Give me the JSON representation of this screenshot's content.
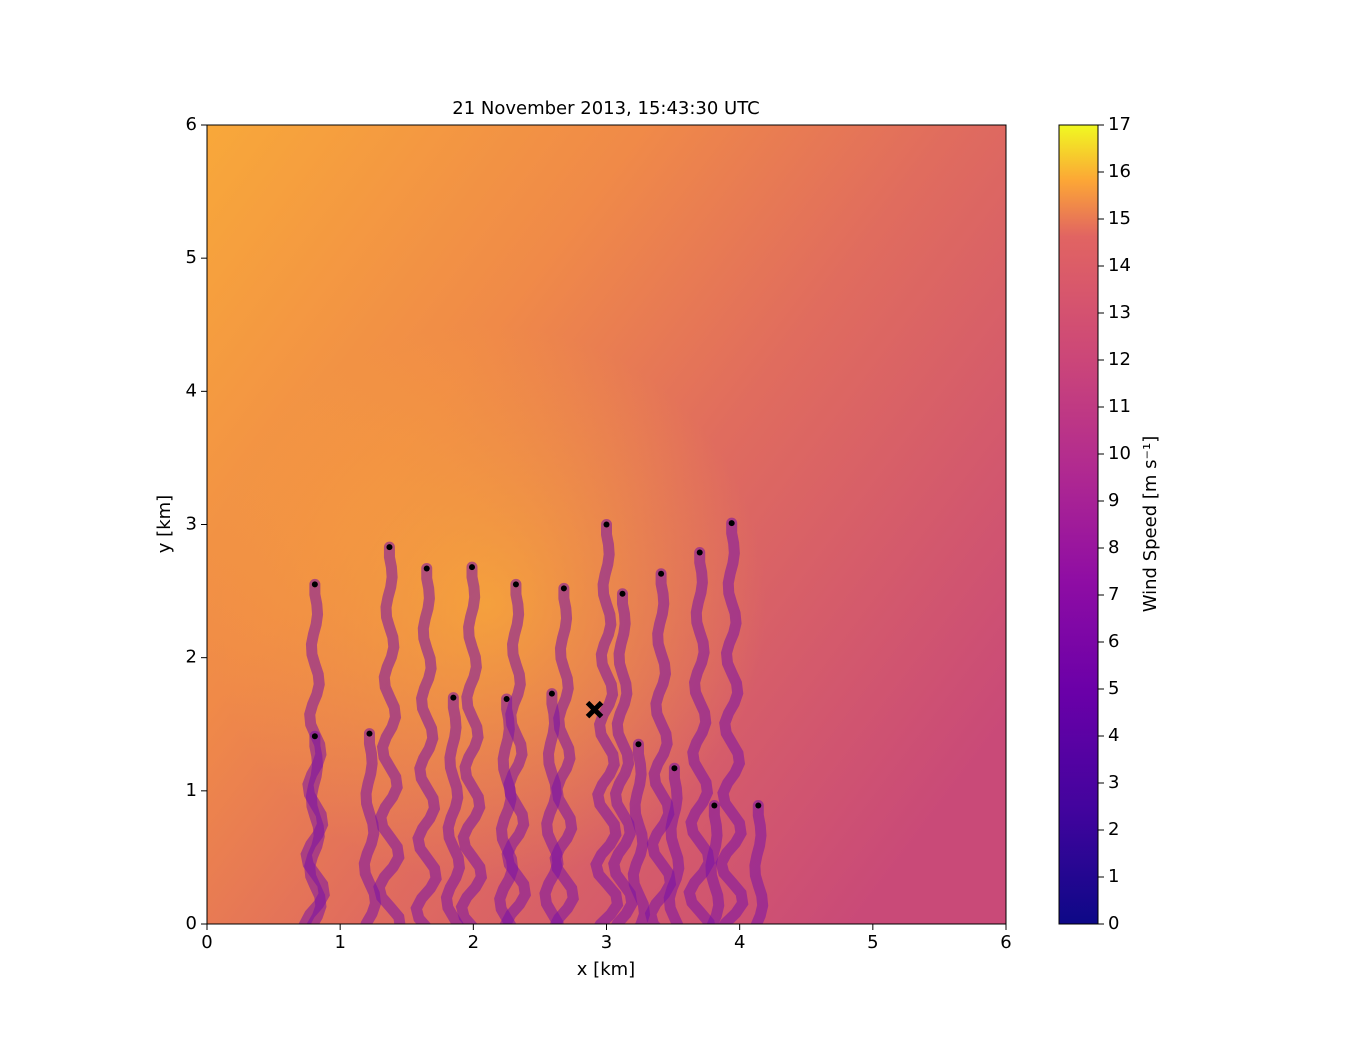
{
  "chart_data": {
    "type": "scatter",
    "title": "21 November 2013, 15:43:30 UTC",
    "xlabel": "x [km]",
    "ylabel": "y [km]",
    "xlim": [
      0,
      6
    ],
    "ylim": [
      0,
      6
    ],
    "xticks": [
      0,
      1,
      2,
      3,
      4,
      5,
      6
    ],
    "yticks": [
      0,
      1,
      2,
      3,
      4,
      5,
      6
    ],
    "x": [
      0.81,
      1.37,
      1.65,
      1.99,
      2.32,
      2.68,
      3.0,
      3.12,
      3.41,
      3.7,
      3.94,
      0.81,
      1.22,
      1.85,
      2.25,
      2.59,
      3.24,
      3.51,
      3.81,
      4.14
    ],
    "y": [
      2.55,
      2.83,
      2.67,
      2.68,
      2.55,
      2.52,
      3.0,
      2.48,
      2.63,
      2.79,
      3.01,
      1.41,
      1.43,
      1.7,
      1.69,
      1.73,
      1.35,
      1.17,
      0.89,
      0.89
    ],
    "color": "#000000",
    "marker": {
      "x": 2.91,
      "y": 1.61,
      "color": "#000000"
    },
    "colorbar": {
      "label": "Wind Speed [m s⁻¹]",
      "lim": [
        0,
        17
      ],
      "ticks": [
        0,
        1,
        2,
        3,
        4,
        5,
        6,
        7,
        8,
        9,
        10,
        11,
        12,
        13,
        14,
        15,
        16,
        17
      ]
    }
  }
}
